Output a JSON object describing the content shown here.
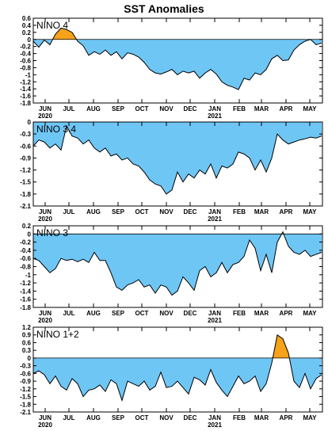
{
  "title": "SST Anomalies",
  "colors": {
    "negative": "#6ec6f5",
    "positive": "#f7a21b",
    "line": "#000000",
    "background": "#ffffff"
  },
  "x_axis": {
    "start": "2020-05-17",
    "end": "2021-05-17",
    "months": [
      {
        "label": "JUN",
        "date": "2020-06-01"
      },
      {
        "label": "JUL",
        "date": "2020-07-01"
      },
      {
        "label": "AUG",
        "date": "2020-08-01"
      },
      {
        "label": "SEP",
        "date": "2020-09-01"
      },
      {
        "label": "OCT",
        "date": "2020-10-01"
      },
      {
        "label": "NOV",
        "date": "2020-11-01"
      },
      {
        "label": "DEC",
        "date": "2020-12-01"
      },
      {
        "label": "JAN",
        "date": "2021-01-01"
      },
      {
        "label": "FEB",
        "date": "2021-02-01"
      },
      {
        "label": "MAR",
        "date": "2021-03-01"
      },
      {
        "label": "APR",
        "date": "2021-04-01"
      },
      {
        "label": "MAY",
        "date": "2021-05-01"
      }
    ],
    "years": [
      {
        "label": "2020",
        "date": "2020-06-01"
      },
      {
        "label": "2021",
        "date": "2021-01-01"
      }
    ]
  },
  "chart_data": [
    {
      "type": "area",
      "name": "NINO 4",
      "ylim": [
        -1.8,
        0.6
      ],
      "yticks": [
        "0.6",
        "0.4",
        "0.2",
        "0",
        "-0.2",
        "-0.4",
        "-0.6",
        "-0.8",
        "-1",
        "-1.2",
        "-1.4",
        "-1.6",
        "-1.8"
      ],
      "x": [
        "2020-05-17",
        "2020-05-24",
        "2020-05-31",
        "2020-06-07",
        "2020-06-14",
        "2020-06-21",
        "2020-06-28",
        "2020-07-05",
        "2020-07-12",
        "2020-07-19",
        "2020-07-26",
        "2020-08-02",
        "2020-08-09",
        "2020-08-16",
        "2020-08-23",
        "2020-08-30",
        "2020-09-06",
        "2020-09-13",
        "2020-09-20",
        "2020-09-27",
        "2020-10-04",
        "2020-10-11",
        "2020-10-18",
        "2020-10-25",
        "2020-11-01",
        "2020-11-08",
        "2020-11-15",
        "2020-11-22",
        "2020-11-29",
        "2020-12-06",
        "2020-12-13",
        "2020-12-20",
        "2020-12-27",
        "2021-01-03",
        "2021-01-10",
        "2021-01-17",
        "2021-01-24",
        "2021-01-31",
        "2021-02-07",
        "2021-02-14",
        "2021-02-21",
        "2021-02-28",
        "2021-03-07",
        "2021-03-14",
        "2021-03-21",
        "2021-03-28",
        "2021-04-04",
        "2021-04-11",
        "2021-04-18",
        "2021-04-25",
        "2021-05-02",
        "2021-05-09",
        "2021-05-16"
      ],
      "y": [
        -0.05,
        -0.22,
        -0.02,
        -0.15,
        0.15,
        0.32,
        0.28,
        0.2,
        -0.05,
        -0.18,
        -0.45,
        -0.35,
        -0.42,
        -0.3,
        -0.45,
        -0.35,
        -0.55,
        -0.38,
        -0.42,
        -0.5,
        -0.65,
        -0.85,
        -0.95,
        -0.98,
        -0.92,
        -0.85,
        -1.0,
        -0.9,
        -0.95,
        -0.9,
        -1.1,
        -0.95,
        -0.85,
        -0.98,
        -1.2,
        -1.3,
        -1.35,
        -1.42,
        -1.1,
        -1.15,
        -0.95,
        -1.0,
        -0.85,
        -0.55,
        -0.45,
        -0.6,
        -0.58,
        -0.3,
        -0.15,
        -0.05,
        0.0,
        -0.15,
        -0.1
      ]
    },
    {
      "type": "area",
      "name": "NINO 3.4",
      "ylim": [
        -2.1,
        0.0
      ],
      "yticks": [
        "0",
        "-0.3",
        "-0.6",
        "-0.9",
        "-1.2",
        "-1.5",
        "-1.8",
        "-2.1"
      ],
      "x": [
        "2020-05-17",
        "2020-05-24",
        "2020-05-31",
        "2020-06-07",
        "2020-06-14",
        "2020-06-21",
        "2020-06-28",
        "2020-07-05",
        "2020-07-12",
        "2020-07-19",
        "2020-07-26",
        "2020-08-02",
        "2020-08-09",
        "2020-08-16",
        "2020-08-23",
        "2020-08-30",
        "2020-09-06",
        "2020-09-13",
        "2020-09-20",
        "2020-09-27",
        "2020-10-04",
        "2020-10-11",
        "2020-10-18",
        "2020-10-25",
        "2020-11-01",
        "2020-11-08",
        "2020-11-15",
        "2020-11-22",
        "2020-11-29",
        "2020-12-06",
        "2020-12-13",
        "2020-12-20",
        "2020-12-27",
        "2021-01-03",
        "2021-01-10",
        "2021-01-17",
        "2021-01-24",
        "2021-01-31",
        "2021-02-07",
        "2021-02-14",
        "2021-02-21",
        "2021-02-28",
        "2021-03-07",
        "2021-03-14",
        "2021-03-21",
        "2021-03-28",
        "2021-04-04",
        "2021-04-11",
        "2021-04-18",
        "2021-04-25",
        "2021-05-02",
        "2021-05-09",
        "2021-05-16"
      ],
      "y": [
        -0.6,
        -0.45,
        -0.5,
        -0.65,
        -0.55,
        -0.7,
        -0.1,
        -0.35,
        -0.4,
        -0.55,
        -0.45,
        -0.65,
        -0.75,
        -0.65,
        -0.85,
        -0.8,
        -0.95,
        -0.9,
        -1.05,
        -1.1,
        -1.25,
        -1.45,
        -1.55,
        -1.6,
        -1.8,
        -1.7,
        -1.25,
        -1.5,
        -1.3,
        -1.4,
        -1.2,
        -1.3,
        -1.05,
        -1.4,
        -1.1,
        -1.15,
        -1.05,
        -0.75,
        -0.8,
        -0.9,
        -1.2,
        -0.95,
        -1.25,
        -0.9,
        -0.3,
        -0.45,
        -0.55,
        -0.5,
        -0.45,
        -0.42,
        -0.38,
        -0.4,
        -0.35
      ]
    },
    {
      "type": "area",
      "name": "NINO 3",
      "ylim": [
        -1.8,
        0.2
      ],
      "yticks": [
        "0.2",
        "0",
        "-0.2",
        "-0.4",
        "-0.6",
        "-0.8",
        "-1",
        "-1.2",
        "-1.4",
        "-1.6",
        "-1.8"
      ],
      "x": [
        "2020-05-17",
        "2020-05-24",
        "2020-05-31",
        "2020-06-07",
        "2020-06-14",
        "2020-06-21",
        "2020-06-28",
        "2020-07-05",
        "2020-07-12",
        "2020-07-19",
        "2020-07-26",
        "2020-08-02",
        "2020-08-09",
        "2020-08-16",
        "2020-08-23",
        "2020-08-30",
        "2020-09-06",
        "2020-09-13",
        "2020-09-20",
        "2020-09-27",
        "2020-10-04",
        "2020-10-11",
        "2020-10-18",
        "2020-10-25",
        "2020-11-01",
        "2020-11-08",
        "2020-11-15",
        "2020-11-22",
        "2020-11-29",
        "2020-12-06",
        "2020-12-13",
        "2020-12-20",
        "2020-12-27",
        "2021-01-03",
        "2021-01-10",
        "2021-01-17",
        "2021-01-24",
        "2021-01-31",
        "2021-02-07",
        "2021-02-14",
        "2021-02-21",
        "2021-02-28",
        "2021-03-07",
        "2021-03-14",
        "2021-03-21",
        "2021-03-28",
        "2021-04-04",
        "2021-04-11",
        "2021-04-18",
        "2021-04-25",
        "2021-05-02",
        "2021-05-09",
        "2021-05-16"
      ],
      "y": [
        -0.6,
        -0.65,
        -0.8,
        -0.95,
        -0.85,
        -0.6,
        -0.65,
        -0.62,
        -0.68,
        -0.62,
        -0.7,
        -0.45,
        -0.65,
        -0.65,
        -0.95,
        -1.3,
        -1.38,
        -1.25,
        -1.2,
        -1.12,
        -1.3,
        -1.25,
        -1.45,
        -1.25,
        -1.3,
        -1.5,
        -1.4,
        -1.05,
        -1.2,
        -1.38,
        -0.9,
        -0.8,
        -1.05,
        -0.95,
        -0.7,
        -0.95,
        -0.75,
        -0.7,
        -0.55,
        -0.15,
        -0.35,
        -0.9,
        -0.5,
        -0.95,
        -0.2,
        0.05,
        -0.3,
        -0.45,
        -0.5,
        -0.4,
        -0.55,
        -0.5,
        -0.45
      ]
    },
    {
      "type": "area",
      "name": "NINO 1+2",
      "ylim": [
        -2.1,
        1.2
      ],
      "yticks": [
        "1.2",
        "0.9",
        "0.6",
        "0.3",
        "0",
        "-0.3",
        "-0.6",
        "-0.9",
        "-1.2",
        "-1.5",
        "-1.8",
        "-2.1"
      ],
      "x": [
        "2020-05-17",
        "2020-05-24",
        "2020-05-31",
        "2020-06-07",
        "2020-06-14",
        "2020-06-21",
        "2020-06-28",
        "2020-07-05",
        "2020-07-12",
        "2020-07-19",
        "2020-07-26",
        "2020-08-02",
        "2020-08-09",
        "2020-08-16",
        "2020-08-23",
        "2020-08-30",
        "2020-09-06",
        "2020-09-13",
        "2020-09-20",
        "2020-09-27",
        "2020-10-04",
        "2020-10-11",
        "2020-10-18",
        "2020-10-25",
        "2020-11-01",
        "2020-11-08",
        "2020-11-15",
        "2020-11-22",
        "2020-11-29",
        "2020-12-06",
        "2020-12-13",
        "2020-12-20",
        "2020-12-27",
        "2021-01-03",
        "2021-01-10",
        "2021-01-17",
        "2021-01-24",
        "2021-01-31",
        "2021-02-07",
        "2021-02-14",
        "2021-02-21",
        "2021-02-28",
        "2021-03-07",
        "2021-03-14",
        "2021-03-21",
        "2021-03-28",
        "2021-04-04",
        "2021-04-11",
        "2021-04-18",
        "2021-04-25",
        "2021-05-02",
        "2021-05-09",
        "2021-05-16"
      ],
      "y": [
        -0.6,
        -0.5,
        -0.65,
        -1.0,
        -0.7,
        -1.1,
        -1.25,
        -0.8,
        -1.0,
        -1.5,
        -1.25,
        -1.2,
        -1.05,
        -1.3,
        -0.85,
        -1.0,
        -1.65,
        -0.9,
        -1.0,
        -1.1,
        -0.9,
        -1.25,
        -1.1,
        -0.55,
        -1.15,
        -1.1,
        -0.9,
        -1.15,
        -1.4,
        -0.75,
        -0.85,
        -1.05,
        -0.45,
        -0.95,
        -1.25,
        -1.5,
        -1.1,
        -0.7,
        -1.0,
        -0.9,
        -0.7,
        -1.3,
        -1.0,
        -0.2,
        0.9,
        0.75,
        0.2,
        -0.9,
        -1.15,
        -0.6,
        -1.2,
        -0.8,
        -0.65
      ]
    }
  ]
}
